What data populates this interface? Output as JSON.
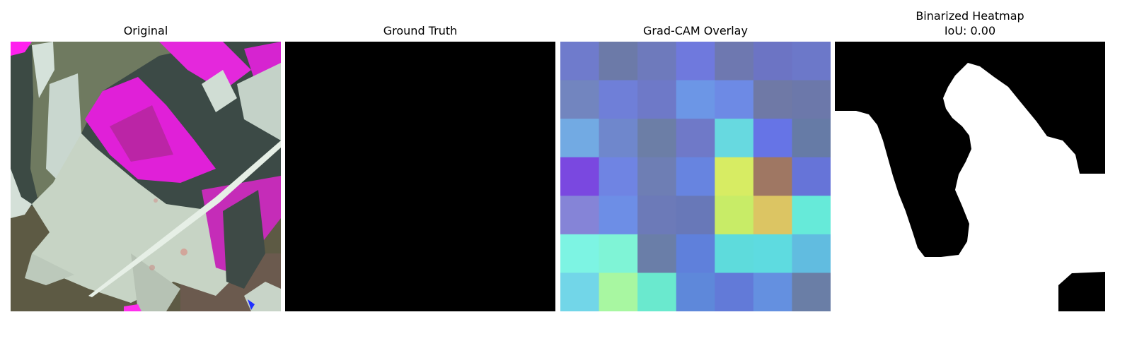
{
  "panels": {
    "original": {
      "title": "Original"
    },
    "ground_truth": {
      "title": "Ground Truth"
    },
    "gradcam": {
      "title": "Grad-CAM Overlay",
      "grid_rows": 7,
      "grid_cols": 7,
      "cell_colors": [
        [
          "#6f7bcc",
          "#6c7aa8",
          "#6e7abc",
          "#6f79dd",
          "#6e78b0",
          "#6c74c4",
          "#6c78c9"
        ],
        [
          "#7285bf",
          "#6f7fd8",
          "#6e79c8",
          "#6c96e6",
          "#6d8ae5",
          "#6f79a6",
          "#6c78aa"
        ],
        [
          "#72aae3",
          "#6f87cc",
          "#6c7ea6",
          "#6f79c8",
          "#67d9e0",
          "#6674e6",
          "#667ba6"
        ],
        [
          "#7a48e0",
          "#6f84e3",
          "#6e7eb4",
          "#6784e0",
          "#d7ec63",
          "#9f7763",
          "#6674d8"
        ],
        [
          "#8584d7",
          "#6d8ee6",
          "#6c7ab8",
          "#6878b8",
          "#c8ec67",
          "#dcc563",
          "#66ead9"
        ],
        [
          "#7df4e3",
          "#7ff4d6",
          "#6a7ea8",
          "#5f80db",
          "#5edbdc",
          "#5edbe0",
          "#61bce0"
        ],
        [
          "#72d6e8",
          "#a8f7a1",
          "#6ae9ce",
          "#5e88da",
          "#627ad8",
          "#6490e0",
          "#6a7ea6"
        ]
      ]
    },
    "binarized": {
      "title": "Binarized Heatmap",
      "subtitle": "IoU: 0.00"
    }
  }
}
